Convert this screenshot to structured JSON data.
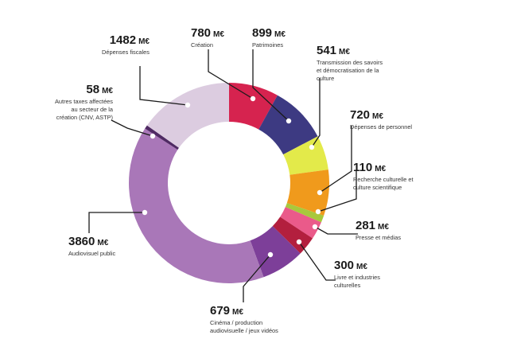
{
  "chart_data": {
    "type": "pie",
    "donut": true,
    "unit": "M€",
    "legend": "none",
    "slices": [
      {
        "value": 780,
        "value_label": "780",
        "label": [
          "Création"
        ],
        "color": "#d6234f"
      },
      {
        "value": 899,
        "value_label": "899",
        "label": [
          "Patrimoines"
        ],
        "color": "#3d3a82"
      },
      {
        "value": 541,
        "value_label": "541",
        "label": [
          "Transmission des savoirs",
          "et démocratisation de la",
          "culture"
        ],
        "color": "#e3ea4a"
      },
      {
        "value": 720,
        "value_label": "720",
        "label": [
          "Dépenses de personnel"
        ],
        "color": "#f09a1c"
      },
      {
        "value": 110,
        "value_label": "110",
        "label": [
          "Recherche culturelle et",
          "culture scientifique"
        ],
        "color": "#a8c83c"
      },
      {
        "value": 281,
        "value_label": "281",
        "label": [
          "Presse et médias"
        ],
        "color": "#ea5a8a"
      },
      {
        "value": 300,
        "value_label": "300",
        "label": [
          "Livre et industries",
          "culturelles"
        ],
        "color": "#b31f3e"
      },
      {
        "value": 679,
        "value_label": "679",
        "label": [
          "Cinéma / production",
          "audiovisuelle / jeux vidéos"
        ],
        "color": "#7d3f99"
      },
      {
        "value": 3860,
        "value_label": "3860",
        "label": [
          "Audiovisuel public"
        ],
        "color": "#a977b8"
      },
      {
        "value": 58,
        "value_label": "58",
        "label": [
          "Autres taxes affectées",
          "au secteur de la",
          "création (CNV, ASTP)"
        ],
        "color": "#4f2a63"
      },
      {
        "value": 1482,
        "value_label": "1482",
        "label": [
          "Dépenses fiscales"
        ],
        "color": "#dccce0"
      }
    ]
  }
}
